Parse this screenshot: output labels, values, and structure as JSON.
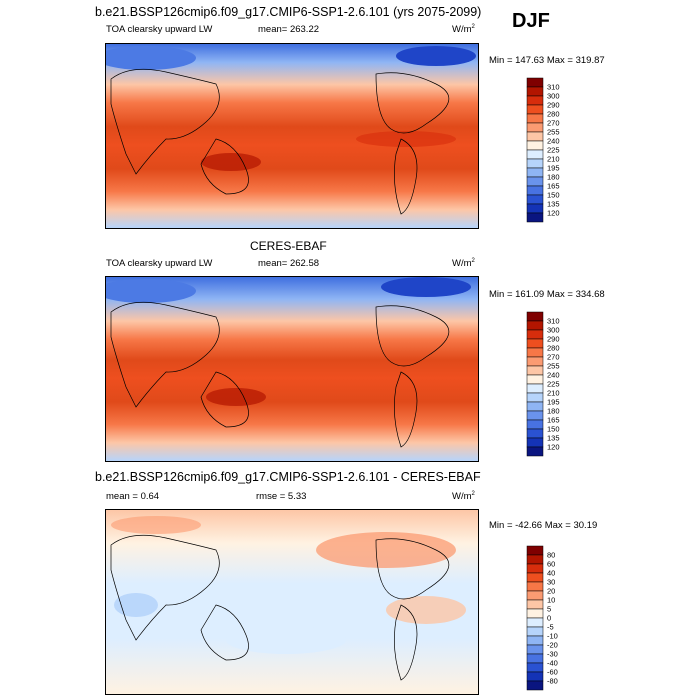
{
  "panels": [
    {
      "id": "model",
      "title": "b.e21.BSSP126cmip6.f09_g17.CMIP6-SSP1-2.6.101 (yrs 2075-2099)",
      "left_label": "TOA clearsky upward LW",
      "center_label": "mean= 263.22",
      "units": "W/m",
      "units_sup": "2",
      "minmax": "Min = 147.63 Max = 319.87",
      "colorbar": {
        "levels": [
          "310",
          "300",
          "290",
          "280",
          "270",
          "255",
          "240",
          "225",
          "210",
          "195",
          "180",
          "165",
          "150",
          "135",
          "120"
        ],
        "colors": [
          "#7f0000",
          "#b21500",
          "#d72d0c",
          "#ee4f1f",
          "#f77747",
          "#fb9b72",
          "#fdc6a6",
          "#fff2e2",
          "#ddeeff",
          "#b6d4fb",
          "#8fb5f4",
          "#6a93ec",
          "#4872e2",
          "#2a52d2",
          "#1433b6",
          "#0a1580"
        ]
      }
    },
    {
      "id": "obs",
      "title": "CERES-EBAF",
      "left_label": "TOA clearsky upward LW",
      "center_label": "mean= 262.58",
      "units": "W/m",
      "units_sup": "2",
      "minmax": "Min = 161.09 Max = 334.68",
      "colorbar": {
        "levels": [
          "310",
          "300",
          "290",
          "280",
          "270",
          "255",
          "240",
          "225",
          "210",
          "195",
          "180",
          "165",
          "150",
          "135",
          "120"
        ],
        "colors": [
          "#7f0000",
          "#b21500",
          "#d72d0c",
          "#ee4f1f",
          "#f77747",
          "#fb9b72",
          "#fdc6a6",
          "#fff2e2",
          "#ddeeff",
          "#b6d4fb",
          "#8fb5f4",
          "#6a93ec",
          "#4872e2",
          "#2a52d2",
          "#1433b6",
          "#0a1580"
        ]
      }
    },
    {
      "id": "diff",
      "title": "b.e21.BSSP126cmip6.f09_g17.CMIP6-SSP1-2.6.101 - CERES-EBAF",
      "left_label": "mean =   0.64",
      "center_label": "rmse =    5.33",
      "units": "W/m",
      "units_sup": "2",
      "minmax": "Min = -42.66 Max =  30.19",
      "colorbar": {
        "levels": [
          "80",
          "60",
          "40",
          "30",
          "20",
          "10",
          "5",
          "0",
          "-5",
          "-10",
          "-20",
          "-30",
          "-40",
          "-60",
          "-80"
        ],
        "colors": [
          "#7f0000",
          "#b21500",
          "#d72d0c",
          "#ee4f1f",
          "#f77747",
          "#fb9b72",
          "#fdc6a6",
          "#fff2e2",
          "#ddeeff",
          "#b6d4fb",
          "#8fb5f4",
          "#6a93ec",
          "#4872e2",
          "#2a52d2",
          "#1433b6",
          "#0a1580"
        ]
      }
    }
  ],
  "season": "DJF"
}
